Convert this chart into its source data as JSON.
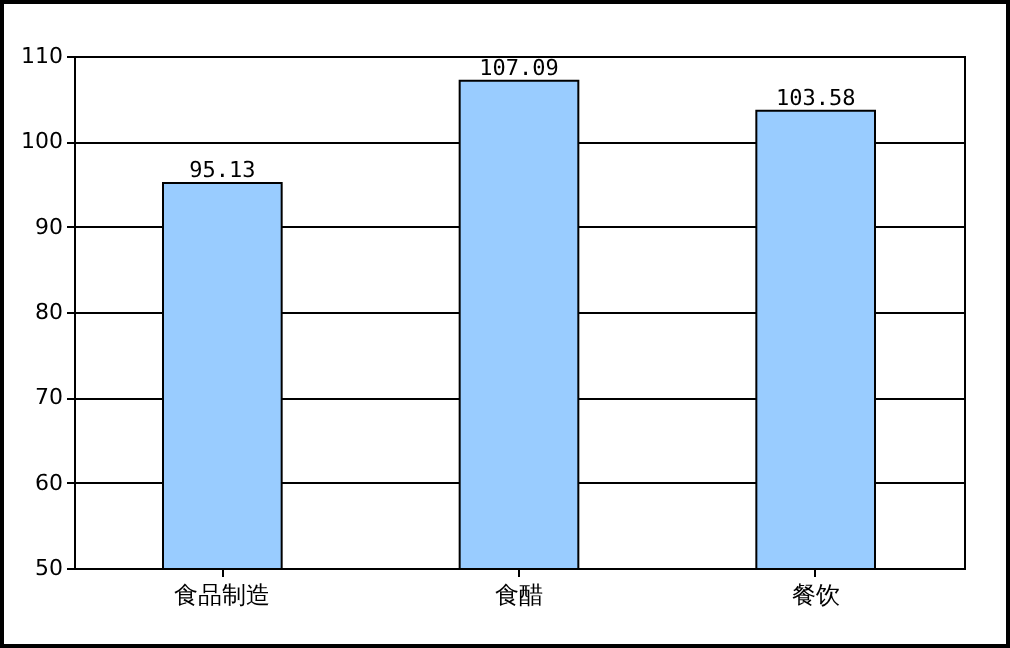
{
  "chart_data": {
    "type": "bar",
    "categories": [
      "食品制造",
      "食醋",
      "餐饮"
    ],
    "values": [
      95.13,
      107.09,
      103.58
    ],
    "color": "#99ccff",
    "ylim": [
      50,
      110
    ],
    "yticks": [
      50,
      60,
      70,
      80,
      90,
      100,
      110
    ],
    "grid": "y",
    "data_labels": true
  }
}
